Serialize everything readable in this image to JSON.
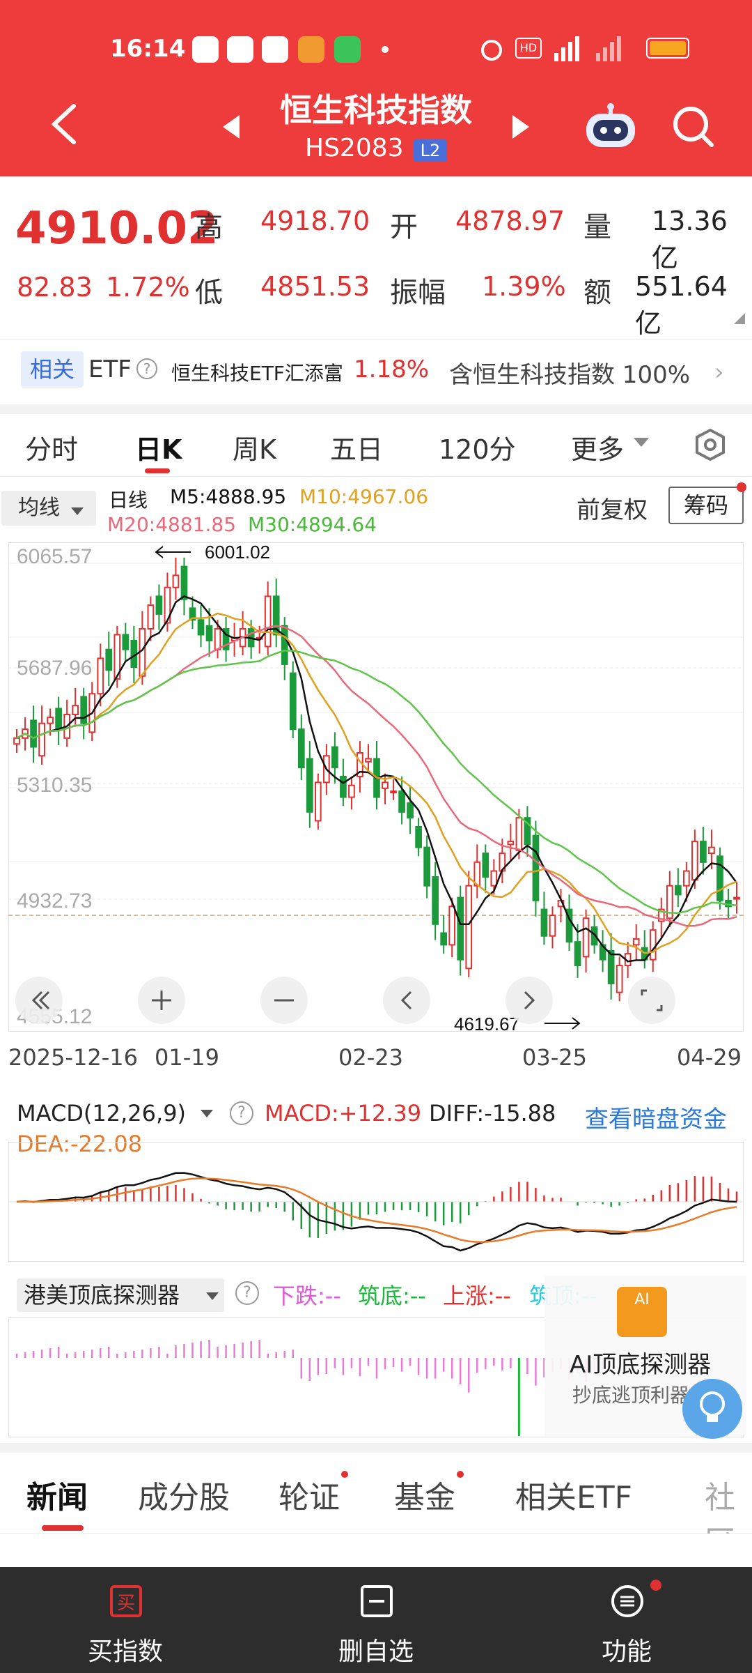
{
  "status": {
    "time": "16:14"
  },
  "header": {
    "title": "恒生科技指数",
    "code": "HS2083",
    "badge": "L2"
  },
  "quote": {
    "price": "4910.02",
    "change": "82.83",
    "change_pct": "1.72%",
    "high_label": "高",
    "high": "4918.70",
    "open_label": "开",
    "open": "4878.97",
    "volume_label": "量",
    "volume": "13.36亿",
    "low_label": "低",
    "low": "4851.53",
    "amplitude_label": "振幅",
    "amplitude": "1.39%",
    "amount_label": "额",
    "amount": "551.64亿"
  },
  "etf": {
    "tag": "相关",
    "label": "ETF",
    "help": "?",
    "name": "恒生科技ETF汇添富",
    "change": "1.18%",
    "holding": "含恒生科技指数 100%",
    "chevron": "›"
  },
  "chart_tabs": [
    "分时",
    "日K",
    "周K",
    "五日",
    "120分",
    "更多"
  ],
  "ma": {
    "button": "均线",
    "period": "日线",
    "m5": "M5:4888.95",
    "m10": "M10:4967.06",
    "m20": "M20:4881.85",
    "m30": "M30:4894.64",
    "adjust": "前复权",
    "chip": "筹码"
  },
  "chart_data": {
    "type": "candlestick",
    "ylabels": [
      "6065.57",
      "5687.96",
      "5310.35",
      "4932.73",
      "4555.12"
    ],
    "dates": [
      "2025-12-16",
      "01-19",
      "02-23",
      "03-25",
      "04-29"
    ],
    "high_marker": "6001.02",
    "low_marker": "4619.67",
    "ylim": [
      4555.12,
      6065.57
    ],
    "closes": [
      5450,
      5480,
      5420,
      5500,
      5520,
      5480,
      5530,
      5560,
      5500,
      5600,
      5720,
      5680,
      5800,
      5750,
      5690,
      5820,
      5900,
      5870,
      5960,
      6001,
      5920,
      5850,
      5800,
      5780,
      5820,
      5750,
      5790,
      5820,
      5760,
      5790,
      5930,
      5800,
      5700,
      5480,
      5350,
      5200,
      5300,
      5390,
      5350,
      5250,
      5290,
      5400,
      5380,
      5250,
      5300,
      5270,
      5200,
      5180,
      5080,
      4950,
      4820,
      4750,
      4880,
      4700,
      4950,
      5030,
      4980,
      5000,
      5060,
      5100,
      5180,
      5090,
      4900,
      4780,
      4850,
      4900,
      4760,
      4680,
      4840,
      4750,
      4700,
      4619,
      4680,
      4720,
      4770,
      4700,
      4800,
      4870,
      4950,
      4920,
      5000,
      5100,
      5030,
      5080,
      4900,
      4880,
      4910
    ],
    "ma_lines": [
      "M5",
      "M10",
      "M20",
      "M30"
    ]
  },
  "macd": {
    "label": "MACD(12,26,9)",
    "help": "?",
    "macd": "MACD:+12.39",
    "diff": "DIFF:-15.88",
    "dea": "DEA:-22.08",
    "link": "查看暗盘资金"
  },
  "detector": {
    "label": "港美顶底探测器",
    "help": "?",
    "fall": "下跌:--",
    "bottom": "筑底:--",
    "rise": "上涨:--",
    "top": "筑顶:--"
  },
  "ai": {
    "icon": "AI",
    "title": "AI顶底探测器",
    "subtitle": "抄底逃顶利器"
  },
  "bottom_tabs": [
    "新闻",
    "成分股",
    "轮证",
    "基金",
    "相关ETF",
    "社区"
  ],
  "bottom_bar": [
    {
      "label": "买指数",
      "icon": "buy-icon"
    },
    {
      "label": "删自选",
      "icon": "remove-watch-icon"
    },
    {
      "label": "功能",
      "icon": "menu-icon"
    }
  ],
  "colors": {
    "header": "#ee3b3b",
    "up": "#e03030",
    "down": "#1a9a3a",
    "m5": "#111111",
    "m10": "#e0a020",
    "m20": "#e86a7a",
    "m30": "#5fc44a"
  }
}
